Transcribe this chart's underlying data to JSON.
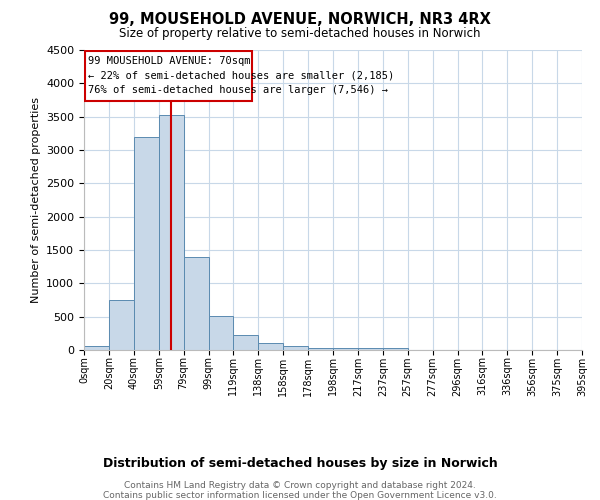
{
  "title": "99, MOUSEHOLD AVENUE, NORWICH, NR3 4RX",
  "subtitle": "Size of property relative to semi-detached houses in Norwich",
  "xlabel": "Distribution of semi-detached houses by size in Norwich",
  "ylabel": "Number of semi-detached properties",
  "footnote1": "Contains HM Land Registry data © Crown copyright and database right 2024.",
  "footnote2": "Contains public sector information licensed under the Open Government Licence v3.0.",
  "annotation_title": "99 MOUSEHOLD AVENUE: 70sqm",
  "annotation_line1": "← 22% of semi-detached houses are smaller (2,185)",
  "annotation_line2": "76% of semi-detached houses are larger (7,546) →",
  "property_size_bin": 3.5,
  "bar_color": "#c8d8e8",
  "bar_edge_color": "#5a8ab0",
  "vline_color": "#cc0000",
  "annotation_box_color": "#cc0000",
  "ylim": [
    0,
    4500
  ],
  "bin_labels": [
    "0sqm",
    "20sqm",
    "40sqm",
    "59sqm",
    "79sqm",
    "99sqm",
    "119sqm",
    "138sqm",
    "158sqm",
    "178sqm",
    "198sqm",
    "217sqm",
    "237sqm",
    "257sqm",
    "277sqm",
    "296sqm",
    "316sqm",
    "336sqm",
    "356sqm",
    "375sqm",
    "395sqm"
  ],
  "bar_heights": [
    60,
    750,
    3200,
    3530,
    1390,
    505,
    218,
    110,
    65,
    35,
    35,
    30,
    25,
    0,
    0,
    0,
    0,
    0,
    0,
    0
  ],
  "background_color": "#ffffff",
  "grid_color": "#c8d8e8"
}
